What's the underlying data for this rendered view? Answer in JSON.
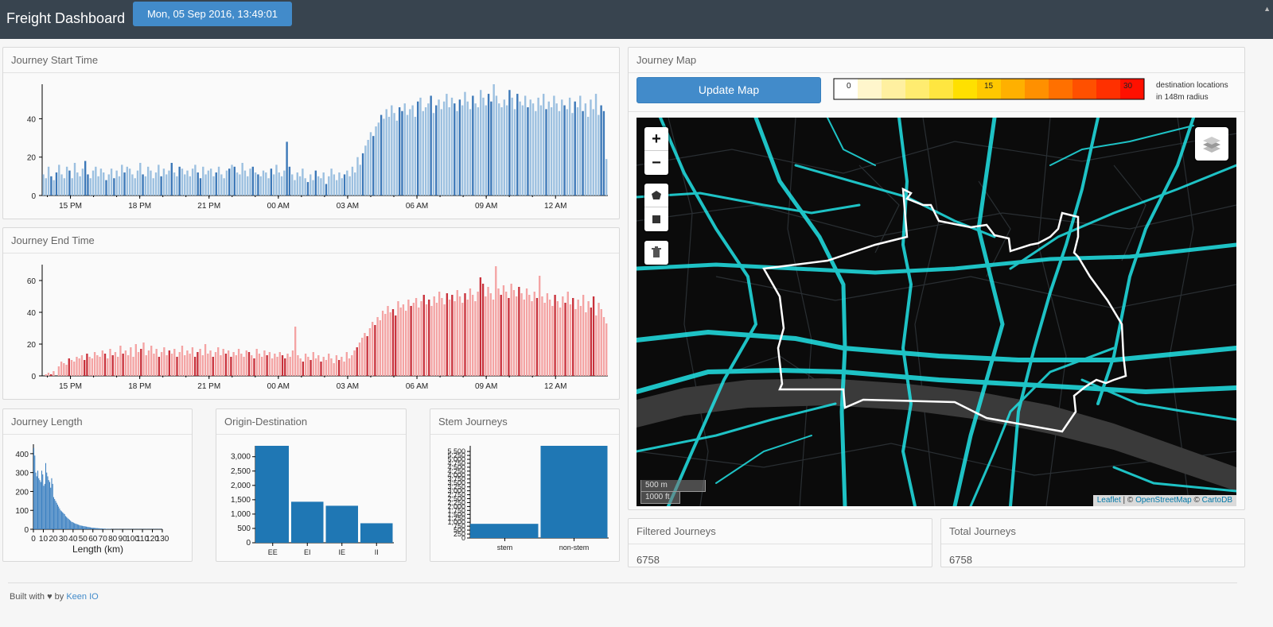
{
  "navbar": {
    "brand": "Freight Dashboard",
    "datetime": "Mon, 05 Sep 2016, 13:49:01"
  },
  "panels": {
    "start": {
      "title": "Journey Start Time"
    },
    "end": {
      "title": "Journey End Time"
    },
    "length": {
      "title": "Journey Length"
    },
    "od": {
      "title": "Origin-Destination"
    },
    "stem": {
      "title": "Stem Journeys"
    },
    "map": {
      "title": "Journey Map"
    },
    "filtered": {
      "title": "Filtered Journeys",
      "value": "6758"
    },
    "total": {
      "title": "Total Journeys",
      "value": "6758"
    }
  },
  "map": {
    "update_button": "Update Map",
    "legend_low": "0",
    "legend_mid": "15",
    "legend_high": "30",
    "legend_note_line1": "destination locations",
    "legend_note_line2": "in 148m radius",
    "legend_colors": [
      "#ffffff",
      "#fff6cc",
      "#fff0a0",
      "#ffec70",
      "#ffe640",
      "#ffe000",
      "#ffc800",
      "#ffb000",
      "#ff9000",
      "#ff7000",
      "#ff5000",
      "#ff3000",
      "#ff1000"
    ],
    "zoom_in": "+",
    "zoom_out": "−",
    "scale_m": "500 m",
    "scale_ft": "1000 ft",
    "attrib_leaflet": "Leaflet",
    "attrib_sep1": " | © ",
    "attrib_osm": "OpenStreetMap",
    "attrib_sep2": " © ",
    "attrib_carto": "CartoDB",
    "road_color": "#22e3e6",
    "boundary_color": "#ffffff",
    "river_color": "#3a3a3a"
  },
  "footer": {
    "prefix": "Built with ♥ by ",
    "link": "Keen IO"
  },
  "chart_data": [
    {
      "id": "start",
      "type": "bar",
      "title": "Journey Start Time",
      "x_ticks": [
        "15 PM",
        "18 PM",
        "21 PM",
        "00 AM",
        "03 AM",
        "06 AM",
        "09 AM",
        "12 AM"
      ],
      "ylim": [
        0,
        58
      ],
      "y_ticks": [
        "0",
        "20",
        "40"
      ],
      "y_tick_values": [
        0,
        20,
        40
      ],
      "color_light": "#9cc0e0",
      "color_dark": "#3c78b8",
      "values": [
        11,
        9,
        15,
        10,
        8,
        12,
        16,
        11,
        9,
        15,
        13,
        9,
        17,
        12,
        10,
        14,
        18,
        11,
        9,
        13,
        15,
        10,
        14,
        12,
        8,
        11,
        14,
        9,
        13,
        10,
        16,
        12,
        15,
        14,
        11,
        9,
        13,
        17,
        11,
        10,
        15,
        13,
        9,
        12,
        16,
        10,
        14,
        11,
        13,
        17,
        12,
        10,
        15,
        14,
        11,
        13,
        10,
        14,
        16,
        12,
        9,
        15,
        11,
        13,
        14,
        10,
        12,
        15,
        11,
        9,
        13,
        14,
        16,
        15,
        12,
        11,
        17,
        13,
        10,
        14,
        15,
        12,
        11,
        10,
        13,
        12,
        9,
        14,
        11,
        16,
        12,
        10,
        13,
        28,
        15,
        11,
        8,
        12,
        10,
        14,
        9,
        7,
        11,
        8,
        13,
        10,
        9,
        12,
        6,
        10,
        14,
        11,
        8,
        12,
        9,
        11,
        13,
        10,
        15,
        12,
        20,
        16,
        22,
        26,
        29,
        33,
        31,
        36,
        38,
        42,
        40,
        45,
        41,
        47,
        43,
        39,
        46,
        44,
        48,
        42,
        45,
        47,
        41,
        49,
        51,
        44,
        46,
        48,
        52,
        43,
        47,
        50,
        45,
        49,
        53,
        46,
        51,
        48,
        44,
        50,
        47,
        54,
        49,
        45,
        52,
        48,
        46,
        55,
        51,
        47,
        53,
        49,
        58,
        52,
        48,
        46,
        50,
        47,
        55,
        51,
        45,
        53,
        49,
        47,
        52,
        46,
        50,
        48,
        44,
        51,
        47,
        53,
        45,
        49,
        46,
        52,
        48,
        44,
        50,
        47,
        45,
        51,
        43,
        49,
        46,
        52,
        44,
        48,
        41,
        50,
        45,
        53,
        42,
        47,
        44,
        19
      ]
    },
    {
      "id": "end",
      "type": "bar",
      "title": "Journey End Time",
      "x_ticks": [
        "15 PM",
        "18 PM",
        "21 PM",
        "00 AM",
        "03 AM",
        "06 AM",
        "09 AM",
        "12 AM"
      ],
      "ylim": [
        0,
        70
      ],
      "y_ticks": [
        "0",
        "20",
        "40",
        "60"
      ],
      "y_tick_values": [
        0,
        20,
        40,
        60
      ],
      "color_light": "#f4a3a3",
      "color_dark": "#c9303a",
      "values": [
        0,
        1,
        2,
        1,
        3,
        0,
        6,
        9,
        8,
        7,
        11,
        10,
        9,
        12,
        11,
        13,
        10,
        14,
        12,
        11,
        15,
        13,
        12,
        16,
        14,
        11,
        17,
        13,
        15,
        12,
        19,
        14,
        16,
        13,
        18,
        12,
        20,
        15,
        17,
        21,
        13,
        16,
        19,
        14,
        17,
        12,
        15,
        18,
        13,
        16,
        14,
        17,
        12,
        15,
        19,
        13,
        16,
        14,
        18,
        12,
        15,
        17,
        13,
        20,
        14,
        16,
        12,
        15,
        18,
        13,
        17,
        14,
        16,
        12,
        15,
        13,
        17,
        14,
        12,
        16,
        15,
        13,
        11,
        17,
        14,
        12,
        16,
        13,
        15,
        11,
        14,
        12,
        15,
        13,
        11,
        14,
        12,
        16,
        31,
        13,
        11,
        9,
        14,
        12,
        10,
        15,
        11,
        13,
        9,
        12,
        10,
        14,
        11,
        8,
        13,
        10,
        12,
        9,
        15,
        11,
        13,
        16,
        18,
        21,
        24,
        27,
        25,
        30,
        34,
        32,
        37,
        35,
        41,
        39,
        44,
        40,
        42,
        38,
        47,
        43,
        45,
        41,
        48,
        44,
        46,
        49,
        43,
        47,
        51,
        45,
        48,
        44,
        50,
        46,
        53,
        49,
        45,
        52,
        48,
        51,
        47,
        54,
        50,
        46,
        52,
        48,
        55,
        51,
        47,
        53,
        62,
        58,
        50,
        56,
        52,
        48,
        69,
        55,
        51,
        57,
        53,
        49,
        58,
        54,
        50,
        56,
        52,
        48,
        55,
        51,
        47,
        53,
        49,
        63,
        50,
        46,
        52,
        48,
        44,
        51,
        47,
        43,
        50,
        46,
        53,
        45,
        49,
        42,
        48,
        44,
        51,
        40,
        47,
        43,
        50,
        38,
        46,
        42,
        37,
        33
      ]
    },
    {
      "id": "length",
      "type": "bar",
      "title": "Journey Length",
      "xlabel": "Length (km)",
      "x_ticks": [
        "0",
        "10",
        "20",
        "30",
        "40",
        "50",
        "60",
        "70",
        "80",
        "90",
        "100",
        "110",
        "120",
        "130"
      ],
      "x_tick_values": [
        0,
        10,
        20,
        30,
        40,
        50,
        60,
        70,
        80,
        90,
        100,
        110,
        120,
        130
      ],
      "xlim": [
        0,
        130
      ],
      "ylim": [
        0,
        450
      ],
      "y_ticks": [
        "0",
        "100",
        "200",
        "300",
        "400"
      ],
      "y_tick_values": [
        0,
        100,
        200,
        300,
        400
      ],
      "bin_width": 1,
      "values": [
        430,
        390,
        300,
        280,
        310,
        270,
        260,
        250,
        310,
        290,
        230,
        240,
        350,
        300,
        280,
        260,
        250,
        220,
        270,
        240,
        170,
        160,
        150,
        140,
        130,
        120,
        110,
        100,
        95,
        90,
        85,
        80,
        70,
        65,
        60,
        55,
        50,
        45,
        40,
        38,
        35,
        32,
        30,
        28,
        26,
        24,
        22,
        20,
        19,
        18,
        17,
        16,
        15,
        14,
        13,
        12,
        11,
        10,
        9,
        8,
        8,
        7,
        7,
        6,
        6,
        5,
        5,
        4,
        4,
        4,
        3,
        3,
        3,
        2,
        2,
        2,
        2,
        2,
        1,
        1,
        1,
        1,
        1,
        1,
        1,
        1,
        1,
        1,
        1,
        1,
        1,
        1,
        1,
        1,
        1,
        1,
        1,
        1,
        1,
        1,
        1,
        1,
        1,
        1,
        1,
        1,
        1,
        1,
        1,
        1,
        1,
        1,
        1,
        1,
        1,
        1,
        1,
        1,
        1,
        1,
        1,
        1,
        1,
        1,
        1,
        1,
        1,
        1,
        1,
        1
      ]
    },
    {
      "id": "od",
      "type": "bar",
      "title": "Origin-Destination",
      "categories": [
        "EE",
        "EI",
        "IE",
        "II"
      ],
      "values": [
        3380,
        1430,
        1290,
        680
      ],
      "ylim": [
        0,
        3380
      ],
      "y_ticks": [
        "0",
        "500",
        "1,000",
        "1,500",
        "2,000",
        "2,500",
        "3,000"
      ],
      "y_tick_values": [
        0,
        500,
        1000,
        1500,
        2000,
        2500,
        3000
      ],
      "color": "#1f77b4"
    },
    {
      "id": "stem",
      "type": "bar",
      "title": "Stem Journeys",
      "categories": [
        "stem",
        "non-stem"
      ],
      "values": [
        900,
        5858
      ],
      "ylim": [
        0,
        5858
      ],
      "y_ticks": [
        "0",
        "250",
        "500",
        "750",
        "1,000",
        "1,250",
        "1,500",
        "1,750",
        "2,000",
        "2,250",
        "2,500",
        "2,750",
        "3,000",
        "3,250",
        "3,500",
        "3,750",
        "4,000",
        "4,250",
        "4,500",
        "4,750",
        "5,000",
        "5,250",
        "5,500"
      ],
      "y_tick_values": [
        0,
        250,
        500,
        750,
        1000,
        1250,
        1500,
        1750,
        2000,
        2250,
        2500,
        2750,
        3000,
        3250,
        3500,
        3750,
        4000,
        4250,
        4500,
        4750,
        5000,
        5250,
        5500
      ],
      "color": "#1f77b4"
    }
  ]
}
